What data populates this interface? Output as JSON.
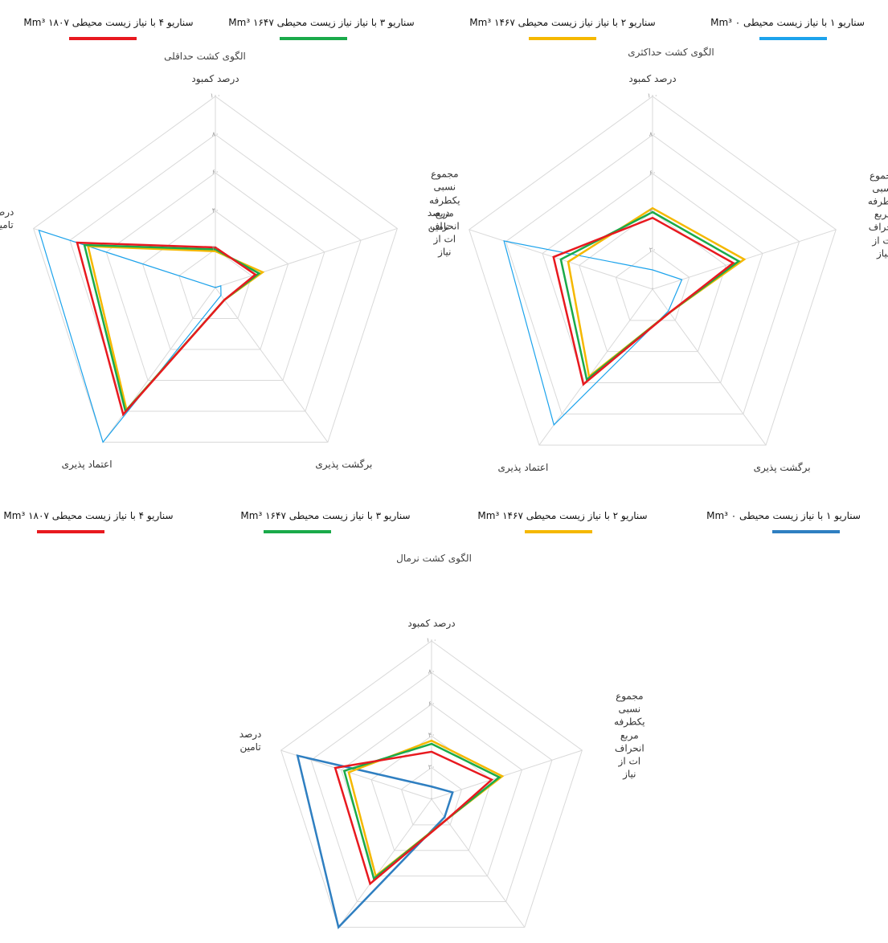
{
  "chart_data": [
    {
      "type": "radar",
      "title": "الگوی کشت حداقلی",
      "categories": [
        "درصد کمبود",
        "مجموع\nنسبی\nیکطرفه\nمربع\nانحراف\nات از\nنیاز",
        "برگشت پذیری",
        "اعتماد پذیری",
        "درصد\nتامین"
      ],
      "series": [
        {
          "name": "سناریو ۱ با نیاز زیست محیطی ۰ Mm³",
          "color": "#1ca3ec",
          "values": [
            0,
            3,
            5,
            100,
            97
          ]
        },
        {
          "name": "سناریو ۲ با نیاز نیاز زیست محیطی ۱۴۶۷ Mm³",
          "color": "#f5b800",
          "values": [
            19,
            26,
            8,
            79,
            70
          ]
        },
        {
          "name": "سناریو ۳ با نیاز نیاز زیست محیطی ۱۶۴۷ Mm³",
          "color": "#1aaa4a",
          "values": [
            20,
            24,
            8,
            80,
            72
          ]
        },
        {
          "name": "سناریو ۴ با نیاز زیست محیطی ۱۸۰۷ Mm³",
          "color": "#e8191f",
          "values": [
            21,
            22,
            8,
            82,
            76
          ]
        }
      ],
      "ylim": [
        0,
        100
      ],
      "yticks": [
        {
          "value": 0,
          "label": "۰"
        },
        {
          "value": 20,
          "label": "۲۰"
        },
        {
          "value": 40,
          "label": "۴۰"
        },
        {
          "value": 60,
          "label": "۶۰"
        },
        {
          "value": 80,
          "label": "۸۰"
        },
        {
          "value": 100,
          "label": "۱۰۰"
        }
      ],
      "grid": true
    },
    {
      "type": "radar",
      "title": "الگوی کشت حداکثری",
      "categories": [
        "درصد کمبود",
        "مجموع\nنسبی\nیکطرفه\nمربع\nانحراف\nات از\nنیاز",
        "برگشت پذیری",
        "اعتماد پذیری",
        "درصد\nتامین"
      ],
      "series": [
        {
          "color": "#1ca3ec",
          "values": [
            10,
            16,
            14,
            87,
            81
          ]
        },
        {
          "color": "#f5b800",
          "values": [
            42,
            50,
            15,
            56,
            46
          ]
        },
        {
          "color": "#1aaa4a",
          "values": [
            40,
            47,
            15,
            58,
            50
          ]
        },
        {
          "color": "#e8191f",
          "values": [
            37,
            44,
            15,
            61,
            54
          ]
        }
      ],
      "ylim": [
        0,
        100
      ],
      "yticks": [
        {
          "value": 0,
          "label": "۰"
        },
        {
          "value": 20,
          "label": "۲۰"
        },
        {
          "value": 40,
          "label": "۴۰"
        },
        {
          "value": 60,
          "label": "۶۰"
        },
        {
          "value": 80,
          "label": "۸۰"
        },
        {
          "value": 100,
          "label": "۱۰۰"
        }
      ],
      "grid": true
    },
    {
      "type": "radar",
      "title": "الگوی کشت نرمال",
      "categories": [
        "درصد کمبود",
        "مجموع\nنسبی\nیکطرفه\nمربع\nانحراف\nات از\nنیاز",
        "برگشت پذیری",
        "اعتماد پذیری",
        "درصد\nتامین"
      ],
      "series": [
        {
          "name": "سناریو ۱ با نیاز زیست محیطی ۰ Mm³",
          "color": "#2f7fc1",
          "values": [
            8,
            14,
            14,
            100,
            89
          ]
        },
        {
          "name": "سناریو ۲ با نیاز زیست محیطی ۱۴۶۷ Mm³",
          "color": "#f5b800",
          "values": [
            37,
            47,
            16,
            60,
            55
          ]
        },
        {
          "name": "سناریو ۳ با نیاز زیست محیطی ۱۶۴۷ Mm³",
          "color": "#1aaa4a",
          "values": [
            35,
            45,
            16,
            62,
            58
          ]
        },
        {
          "name": "سناریو ۴ با نیاز زیست محیطی ۱۸۰۷ Mm³",
          "color": "#e8191f",
          "values": [
            30,
            40,
            16,
            66,
            64
          ]
        }
      ],
      "ylim": [
        0,
        100
      ],
      "yticks": [
        {
          "value": 0,
          "label": "۰"
        },
        {
          "value": 20,
          "label": "۲۰"
        },
        {
          "value": 40,
          "label": "۴۰"
        },
        {
          "value": 60,
          "label": "۶۰"
        },
        {
          "value": 80,
          "label": "۸۰"
        },
        {
          "value": 100,
          "label": "۱۰۰"
        }
      ],
      "grid": true
    }
  ]
}
